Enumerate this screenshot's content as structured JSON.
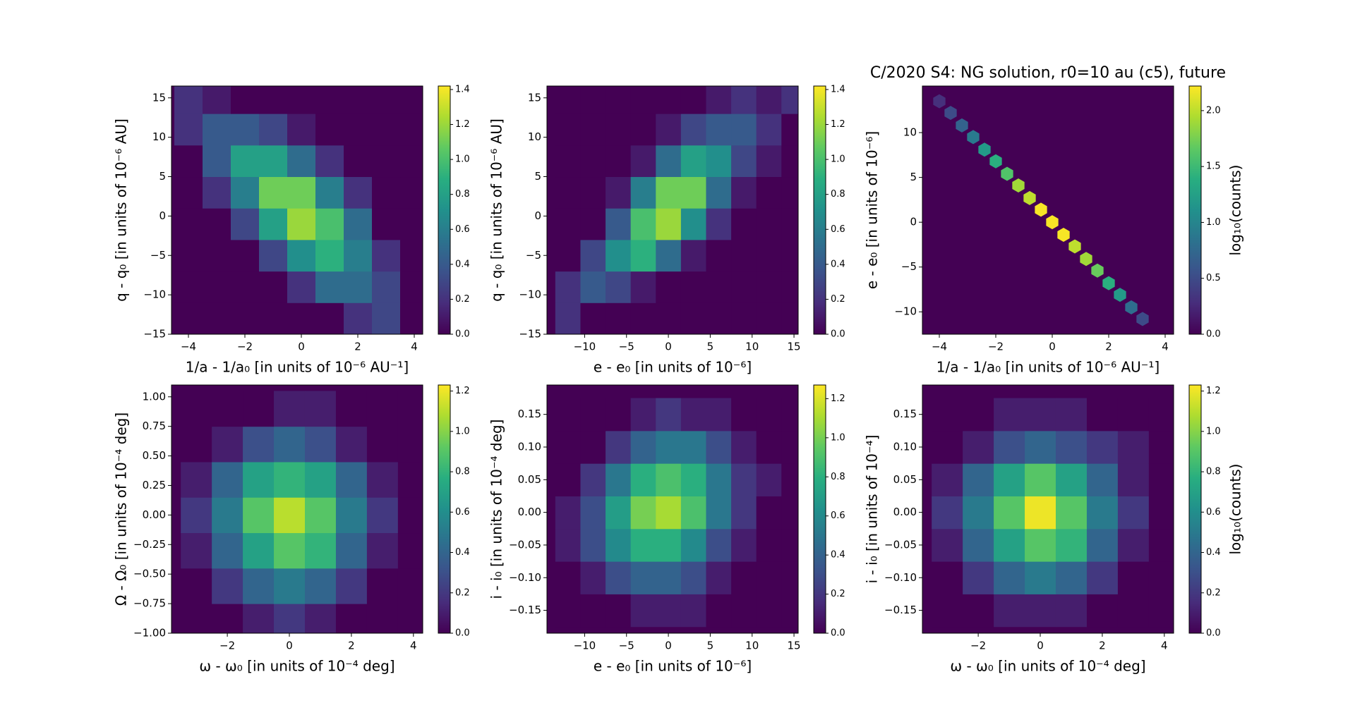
{
  "chart_data": [
    {
      "type": "hexbin",
      "colormap": "viridis",
      "xlabel": "1/a - 1/a₀ [in units of 10⁻⁶ AU⁻¹]",
      "ylabel": "q - q₀ [in units of 10⁻⁶ AU]",
      "xlim": [
        -4.6,
        4.3
      ],
      "ylim": [
        -15,
        16.5
      ],
      "xticks": [
        {
          "value": -4,
          "label": "−4"
        },
        {
          "value": -2,
          "label": "−2"
        },
        0,
        2,
        4
      ],
      "yticks": [
        {
          "value": -15,
          "label": "−15"
        },
        {
          "value": -10,
          "label": "−10"
        },
        {
          "value": -5,
          "label": "−5"
        },
        0,
        5,
        10,
        15
      ],
      "x": [
        -4,
        -3,
        -2,
        -1,
        0,
        1,
        2,
        3,
        4
      ],
      "y": [
        -13,
        -9,
        -5,
        -1,
        3,
        7,
        11,
        15
      ],
      "values": [
        [
          0,
          0,
          0,
          0,
          0,
          0,
          0.2,
          0.3,
          0
        ],
        [
          0,
          0,
          0,
          0,
          0.2,
          0.5,
          0.5,
          0.3,
          0
        ],
        [
          0,
          0,
          0,
          0.3,
          0.7,
          0.9,
          0.6,
          0.2,
          0
        ],
        [
          0,
          0,
          0.3,
          0.8,
          1.2,
          1.0,
          0.5,
          0,
          0
        ],
        [
          0,
          0.2,
          0.6,
          1.1,
          1.1,
          0.6,
          0.2,
          0,
          0
        ],
        [
          0,
          0.4,
          0.8,
          0.8,
          0.5,
          0.2,
          0,
          0,
          0
        ],
        [
          0.2,
          0.4,
          0.4,
          0.3,
          0.1,
          0,
          0,
          0,
          0
        ],
        [
          0.2,
          0.1,
          0,
          0,
          0,
          0,
          0,
          0,
          0
        ]
      ],
      "colorbar": {
        "lim": [
          0,
          1.42
        ],
        "ticks": [
          {
            "value": 0,
            "label": "0.0"
          },
          0.2,
          0.4,
          0.6,
          0.8,
          {
            "value": 1,
            "label": "1.0"
          },
          1.2,
          1.4
        ]
      }
    },
    {
      "type": "hexbin",
      "colormap": "viridis",
      "xlabel": "e - e₀ [in units of 10⁻⁶]",
      "ylabel": "q - q₀ [in units of 10⁻⁶ AU]",
      "xlim": [
        -14.5,
        15.5
      ],
      "ylim": [
        -15,
        16.5
      ],
      "xticks": [
        {
          "value": -10,
          "label": "−10"
        },
        {
          "value": -5,
          "label": "−5"
        },
        0,
        5,
        10,
        15
      ],
      "yticks": [
        {
          "value": -15,
          "label": "−15"
        },
        {
          "value": -10,
          "label": "−10"
        },
        {
          "value": -5,
          "label": "−5"
        },
        0,
        5,
        10,
        15
      ],
      "x": [
        -12,
        -9,
        -6,
        -3,
        0,
        3,
        6,
        9,
        12,
        15
      ],
      "y": [
        -13,
        -9,
        -5,
        -1,
        3,
        7,
        11,
        15
      ],
      "values": [
        [
          0.2,
          0,
          0,
          0,
          0,
          0,
          0,
          0,
          0,
          0
        ],
        [
          0.2,
          0.4,
          0.3,
          0.1,
          0,
          0,
          0,
          0,
          0,
          0
        ],
        [
          0,
          0.3,
          0.7,
          0.9,
          0.5,
          0.1,
          0,
          0,
          0,
          0
        ],
        [
          0,
          0,
          0.4,
          1.0,
          1.2,
          0.7,
          0.2,
          0,
          0,
          0
        ],
        [
          0,
          0,
          0.1,
          0.6,
          1.1,
          1.1,
          0.5,
          0.1,
          0,
          0
        ],
        [
          0,
          0,
          0,
          0.1,
          0.5,
          0.8,
          0.7,
          0.3,
          0.1,
          0
        ],
        [
          0,
          0,
          0,
          0,
          0.1,
          0.3,
          0.4,
          0.4,
          0.2,
          0
        ],
        [
          0,
          0,
          0,
          0,
          0,
          0,
          0.1,
          0.2,
          0.1,
          0.2
        ]
      ],
      "colorbar": {
        "lim": [
          0,
          1.42
        ],
        "ticks": [
          {
            "value": 0,
            "label": "0.0"
          },
          0.2,
          0.4,
          0.6,
          0.8,
          {
            "value": 1,
            "label": "1.0"
          },
          1.2,
          1.4
        ]
      }
    },
    {
      "type": "hexbin",
      "colormap": "viridis",
      "title": "C/2020 S4: NG solution, r0=10 au (c5), future",
      "xlabel": "1/a - 1/a₀ [in units of 10⁻⁶ AU⁻¹]",
      "ylabel": "e - e₀ [in units of 10⁻⁶]",
      "xlim": [
        -4.6,
        4.3
      ],
      "ylim": [
        -12.5,
        15.2
      ],
      "xticks": [
        {
          "value": -4,
          "label": "−4"
        },
        {
          "value": -2,
          "label": "−2"
        },
        0,
        2,
        4
      ],
      "yticks": [
        {
          "value": -10,
          "label": "−10"
        },
        {
          "value": -5,
          "label": "−5"
        },
        0,
        5,
        10
      ],
      "x": [
        -4,
        -3.6,
        -3.2,
        -2.8,
        -2.4,
        -2.0,
        -1.6,
        -1.2,
        -0.8,
        -0.4,
        0,
        0.4,
        0.8,
        1.2,
        1.6,
        2.0,
        2.4,
        2.8,
        3.2
      ],
      "y": [
        13.5,
        12.2,
        10.8,
        9.5,
        8.1,
        6.8,
        5.4,
        4.1,
        2.7,
        1.4,
        0,
        -1.4,
        -2.7,
        -4.1,
        -5.4,
        -6.8,
        -8.1,
        -9.5,
        -10.8
      ],
      "values": [
        0.3,
        0.5,
        0.7,
        0.9,
        1.2,
        1.4,
        1.6,
        1.9,
        2.0,
        2.2,
        2.2,
        2.2,
        2.0,
        1.9,
        1.7,
        1.4,
        1.2,
        0.8,
        0.5
      ],
      "colorbar": {
        "label": "log₁₀(counts)",
        "lim": [
          0,
          2.22
        ],
        "ticks": [
          {
            "value": 0,
            "label": "0.0"
          },
          0.5,
          {
            "value": 1,
            "label": "1.0"
          },
          1.5,
          {
            "value": 2,
            "label": "2.0"
          }
        ]
      }
    },
    {
      "type": "hexbin",
      "colormap": "viridis",
      "xlabel": "ω - ω₀ [in units of 10⁻⁴ deg]",
      "ylabel": "Ω - Ω₀ [in units of 10⁻⁴ deg]",
      "xlim": [
        -3.8,
        4.3
      ],
      "ylim": [
        -1.0,
        1.1
      ],
      "xticks": [
        {
          "value": -2,
          "label": "−2"
        },
        0,
        2,
        4
      ],
      "yticks": [
        {
          "value": -1,
          "label": "−1.00"
        },
        {
          "value": -0.75,
          "label": "−0.75"
        },
        {
          "value": -0.5,
          "label": "−0.50"
        },
        {
          "value": -0.25,
          "label": "−0.25"
        },
        {
          "value": 0,
          "label": "0.00"
        },
        0.25,
        {
          "value": 0.5,
          "label": "0.50"
        },
        0.75,
        {
          "value": 1,
          "label": "1.00"
        }
      ],
      "x": [
        -3,
        -2,
        -1,
        0,
        1,
        2,
        3,
        4
      ],
      "y": [
        -0.9,
        -0.6,
        -0.3,
        0,
        0.3,
        0.6,
        0.9
      ],
      "values": [
        [
          0,
          0,
          0.1,
          0.2,
          0.1,
          0,
          0,
          0
        ],
        [
          0,
          0.2,
          0.4,
          0.5,
          0.4,
          0.2,
          0,
          0
        ],
        [
          0.1,
          0.4,
          0.7,
          0.9,
          0.8,
          0.4,
          0.1,
          0
        ],
        [
          0.2,
          0.5,
          0.9,
          1.1,
          0.9,
          0.5,
          0.2,
          0
        ],
        [
          0.1,
          0.4,
          0.7,
          0.8,
          0.7,
          0.4,
          0.1,
          0
        ],
        [
          0,
          0.1,
          0.3,
          0.4,
          0.3,
          0.1,
          0,
          0
        ],
        [
          0,
          0,
          0,
          0.1,
          0.1,
          0,
          0,
          0
        ]
      ],
      "colorbar": {
        "lim": [
          0,
          1.23
        ],
        "ticks": [
          {
            "value": 0,
            "label": "0.0"
          },
          0.2,
          0.4,
          0.6,
          0.8,
          {
            "value": 1,
            "label": "1.0"
          },
          1.2
        ]
      }
    },
    {
      "type": "hexbin",
      "colormap": "viridis",
      "xlabel": "e - e₀ [in units of 10⁻⁶]",
      "ylabel": "i - i₀ [in units of 10⁻⁴ deg]",
      "xlim": [
        -14.5,
        15.5
      ],
      "ylim": [
        -0.185,
        0.195
      ],
      "xticks": [
        {
          "value": -10,
          "label": "−10"
        },
        {
          "value": -5,
          "label": "−5"
        },
        0,
        5,
        10,
        15
      ],
      "yticks": [
        {
          "value": -0.15,
          "label": "−0.15"
        },
        {
          "value": -0.1,
          "label": "−0.10"
        },
        {
          "value": -0.05,
          "label": "−0.05"
        },
        {
          "value": 0,
          "label": "0.00"
        },
        0.05,
        {
          "value": 0.1,
          "label": "0.10"
        },
        0.15
      ],
      "x": [
        -12,
        -9,
        -6,
        -3,
        0,
        3,
        6,
        9,
        12,
        15
      ],
      "y": [
        -0.15,
        -0.1,
        -0.05,
        0,
        0.05,
        0.1,
        0.15
      ],
      "values": [
        [
          0,
          0,
          0,
          0.1,
          0.1,
          0.1,
          0,
          0,
          0,
          0
        ],
        [
          0,
          0.1,
          0.3,
          0.4,
          0.4,
          0.3,
          0.1,
          0,
          0,
          0
        ],
        [
          0.1,
          0.3,
          0.6,
          0.8,
          0.8,
          0.6,
          0.3,
          0.1,
          0,
          0
        ],
        [
          0.1,
          0.3,
          0.7,
          1.0,
          1.1,
          0.9,
          0.5,
          0.2,
          0,
          0
        ],
        [
          0,
          0.2,
          0.5,
          0.8,
          0.9,
          0.8,
          0.5,
          0.2,
          0.1,
          0
        ],
        [
          0,
          0,
          0.2,
          0.4,
          0.5,
          0.5,
          0.3,
          0.1,
          0,
          0
        ],
        [
          0,
          0,
          0,
          0.1,
          0.2,
          0.1,
          0.1,
          0,
          0,
          0
        ]
      ],
      "colorbar": {
        "lim": [
          0,
          1.27
        ],
        "ticks": [
          {
            "value": 0,
            "label": "0.0"
          },
          0.2,
          0.4,
          0.6,
          0.8,
          {
            "value": 1,
            "label": "1.0"
          },
          1.2
        ]
      }
    },
    {
      "type": "hexbin",
      "colormap": "viridis",
      "xlabel": "ω - ω₀ [in units of 10⁻⁴ deg]",
      "ylabel": "i - i₀ [in units of 10⁻⁴]",
      "xlim": [
        -3.8,
        4.3
      ],
      "ylim": [
        -0.185,
        0.195
      ],
      "xticks": [
        {
          "value": -2,
          "label": "−2"
        },
        0,
        2,
        4
      ],
      "yticks": [
        {
          "value": -0.15,
          "label": "−0.15"
        },
        {
          "value": -0.1,
          "label": "−0.10"
        },
        {
          "value": -0.05,
          "label": "−0.05"
        },
        {
          "value": 0,
          "label": "0.00"
        },
        0.05,
        {
          "value": 0.1,
          "label": "0.10"
        },
        0.15
      ],
      "x": [
        -3,
        -2,
        -1,
        0,
        1,
        2,
        3,
        4
      ],
      "y": [
        -0.15,
        -0.1,
        -0.05,
        0,
        0.05,
        0.1,
        0.15
      ],
      "values": [
        [
          0,
          0,
          0.1,
          0.1,
          0.1,
          0,
          0,
          0
        ],
        [
          0,
          0.2,
          0.4,
          0.5,
          0.4,
          0.2,
          0,
          0
        ],
        [
          0.1,
          0.4,
          0.7,
          0.9,
          0.8,
          0.4,
          0.1,
          0
        ],
        [
          0.2,
          0.5,
          0.9,
          1.2,
          0.9,
          0.5,
          0.2,
          0
        ],
        [
          0.1,
          0.4,
          0.7,
          0.9,
          0.7,
          0.4,
          0.1,
          0
        ],
        [
          0,
          0.1,
          0.3,
          0.4,
          0.3,
          0.2,
          0.1,
          0
        ],
        [
          0,
          0,
          0.1,
          0.1,
          0.1,
          0,
          0,
          0
        ]
      ],
      "colorbar": {
        "label": "log₁₀(counts)",
        "lim": [
          0,
          1.23
        ],
        "ticks": [
          {
            "value": 0,
            "label": "0.0"
          },
          0.2,
          0.4,
          0.6,
          0.8,
          {
            "value": 1,
            "label": "1.0"
          },
          1.2
        ]
      }
    }
  ]
}
